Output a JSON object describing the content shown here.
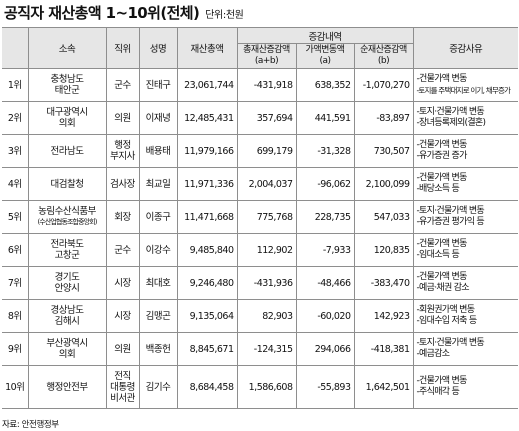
{
  "title": "공직자 재산총액 1~10위(전체)",
  "unit": "단위:천원",
  "headers": {
    "rank": "",
    "org": "소속",
    "position": "직위",
    "name": "성명",
    "total": "재산총액",
    "change_group": "증감내역",
    "total_change": [
      "총재산증감액",
      "(a+b)"
    ],
    "price_change": [
      "가액변동액",
      "(a)"
    ],
    "net_change": [
      "순재산증감액",
      "(b)"
    ],
    "reason": "증감사유"
  },
  "rows": [
    {
      "rank": "1위",
      "org": [
        "충청남도",
        "태안군"
      ],
      "position": [
        "군수"
      ],
      "name": "진태구",
      "total": "23,061,744",
      "total_change": "-431,918",
      "price_change": "638,352",
      "net_change": "-1,070,270",
      "reason": [
        "-건물가액 변동",
        "-토지를 주택대지로 이기, 채무증가"
      ]
    },
    {
      "rank": "2위",
      "org": [
        "대구광역시",
        "의회"
      ],
      "position": [
        "의원"
      ],
      "name": "이재녕",
      "total": "12,485,431",
      "total_change": "357,694",
      "price_change": "441,591",
      "net_change": "-83,897",
      "reason": [
        "-토지·건물가액 변동",
        "-장녀등록제외(결혼)"
      ]
    },
    {
      "rank": "3위",
      "org": [
        "전라남도"
      ],
      "position": [
        "행정",
        "부지사"
      ],
      "name": "배용태",
      "total": "11,979,166",
      "total_change": "699,179",
      "price_change": "-31,328",
      "net_change": "730,507",
      "reason": [
        "-건물가액 변동",
        "-유가증권 증가"
      ]
    },
    {
      "rank": "4위",
      "org": [
        "대검찰청"
      ],
      "position": [
        "검사장"
      ],
      "name": "최교일",
      "total": "11,971,336",
      "total_change": "2,004,037",
      "price_change": "-96,062",
      "net_change": "2,100,099",
      "reason": [
        "-건물가액 변동",
        "-배당소득 등"
      ]
    },
    {
      "rank": "5위",
      "org": [
        "농림수산식품부",
        "(수산업협동조합중앙회)"
      ],
      "position": [
        "회장"
      ],
      "name": "이종구",
      "total": "11,471,668",
      "total_change": "775,768",
      "price_change": "228,735",
      "net_change": "547,033",
      "reason": [
        "-토지·건물가액 변동",
        "-유가증권 평가익 등"
      ]
    },
    {
      "rank": "6위",
      "org": [
        "전라북도",
        "고창군"
      ],
      "position": [
        "군수"
      ],
      "name": "이강수",
      "total": "9,485,840",
      "total_change": "112,902",
      "price_change": "-7,933",
      "net_change": "120,835",
      "reason": [
        "-건물가액 변동",
        "-임대소득 등"
      ]
    },
    {
      "rank": "7위",
      "org": [
        "경기도",
        "안양시"
      ],
      "position": [
        "시장"
      ],
      "name": "최대호",
      "total": "9,246,480",
      "total_change": "-431,936",
      "price_change": "-48,466",
      "net_change": "-383,470",
      "reason": [
        "-건물가액 변동",
        "-예금·채권 감소"
      ]
    },
    {
      "rank": "8위",
      "org": [
        "경상남도",
        "김해시"
      ],
      "position": [
        "시장"
      ],
      "name": "김맹곤",
      "total": "9,135,064",
      "total_change": "82,903",
      "price_change": "-60,020",
      "net_change": "142,923",
      "reason": [
        "-회원권가액 변동",
        "-임대수입 저축 등"
      ]
    },
    {
      "rank": "9위",
      "org": [
        "부산광역시",
        "의회"
      ],
      "position": [
        "의원"
      ],
      "name": "백종헌",
      "total": "8,845,671",
      "total_change": "-124,315",
      "price_change": "294,066",
      "net_change": "-418,381",
      "reason": [
        "-토지·건물가액 변동",
        "-예금감소"
      ]
    },
    {
      "rank": "10위",
      "org": [
        "행정안전부"
      ],
      "position": [
        "전직",
        "대통령",
        "비서관"
      ],
      "name": "김기수",
      "total": "8,684,458",
      "total_change": "1,586,608",
      "price_change": "-55,893",
      "net_change": "1,642,501",
      "reason": [
        "-건물가액 변동",
        "-주식매각 등"
      ]
    }
  ],
  "source": "자료: 안전행정부"
}
